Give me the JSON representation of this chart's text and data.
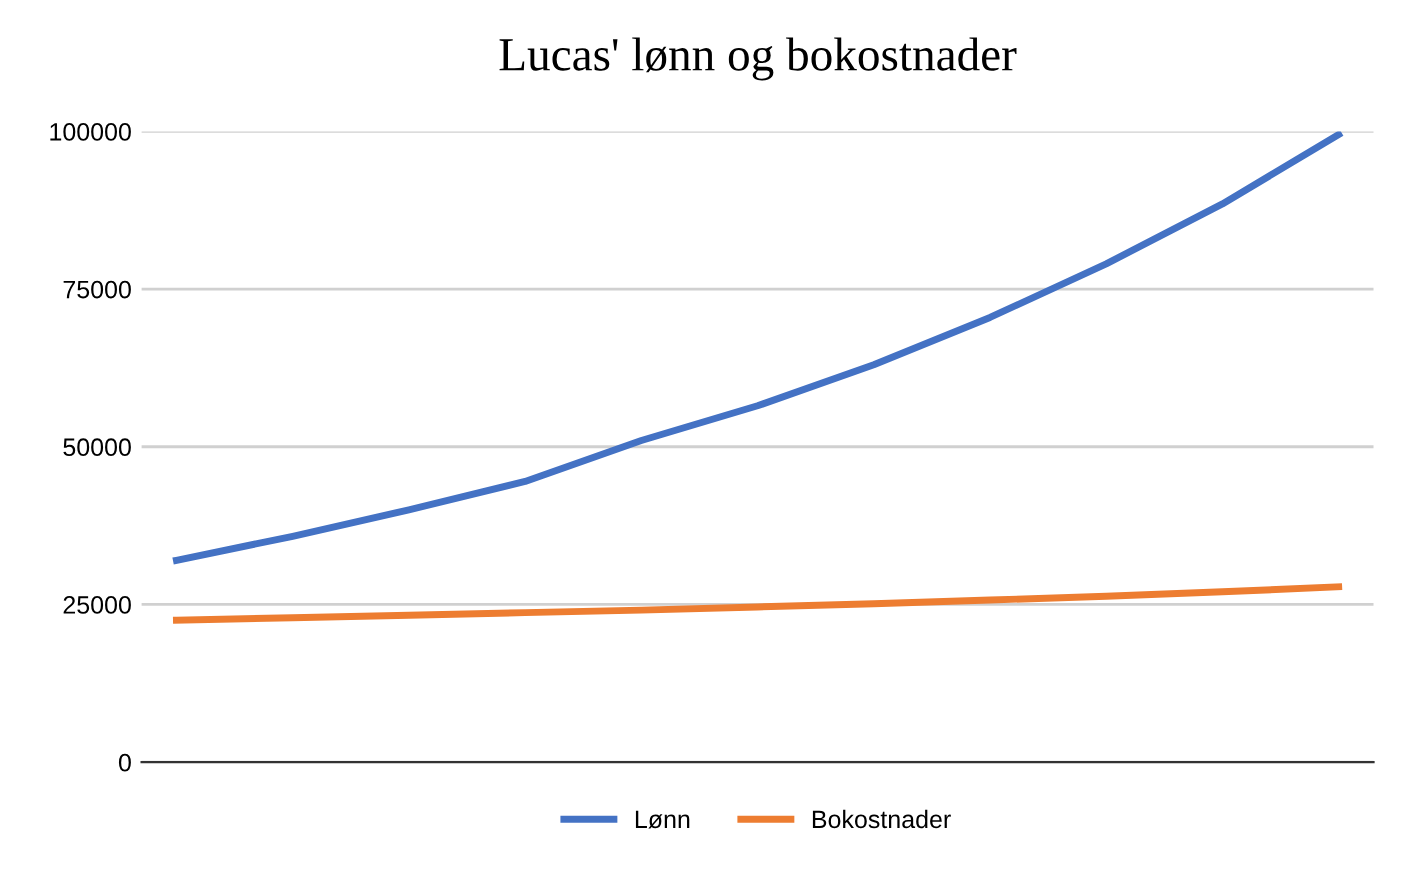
{
  "chart_data": {
    "type": "line",
    "title": "Lucas' lønn og bokostnader",
    "categories": [
      null,
      null,
      null,
      null,
      null,
      null,
      null,
      null,
      null,
      null,
      null
    ],
    "series": [
      {
        "name": "Lønn",
        "color": "#4472c4",
        "values": [
          32000,
          35800,
          40000,
          44500,
          51000,
          56500,
          63000,
          70500,
          79000,
          88500,
          99500
        ]
      },
      {
        "name": "Bokostnader",
        "color": "#ed7d31",
        "values": [
          22500,
          22900,
          23300,
          23700,
          24100,
          24600,
          25100,
          25700,
          26300,
          27000,
          27800
        ]
      }
    ],
    "ylim": [
      0,
      100000
    ],
    "yticks": [
      0,
      25000,
      50000,
      75000,
      100000
    ],
    "grid": "y",
    "legend": "bottom",
    "tick_labels": "y",
    "marker": "none",
    "line_style": "solid"
  }
}
